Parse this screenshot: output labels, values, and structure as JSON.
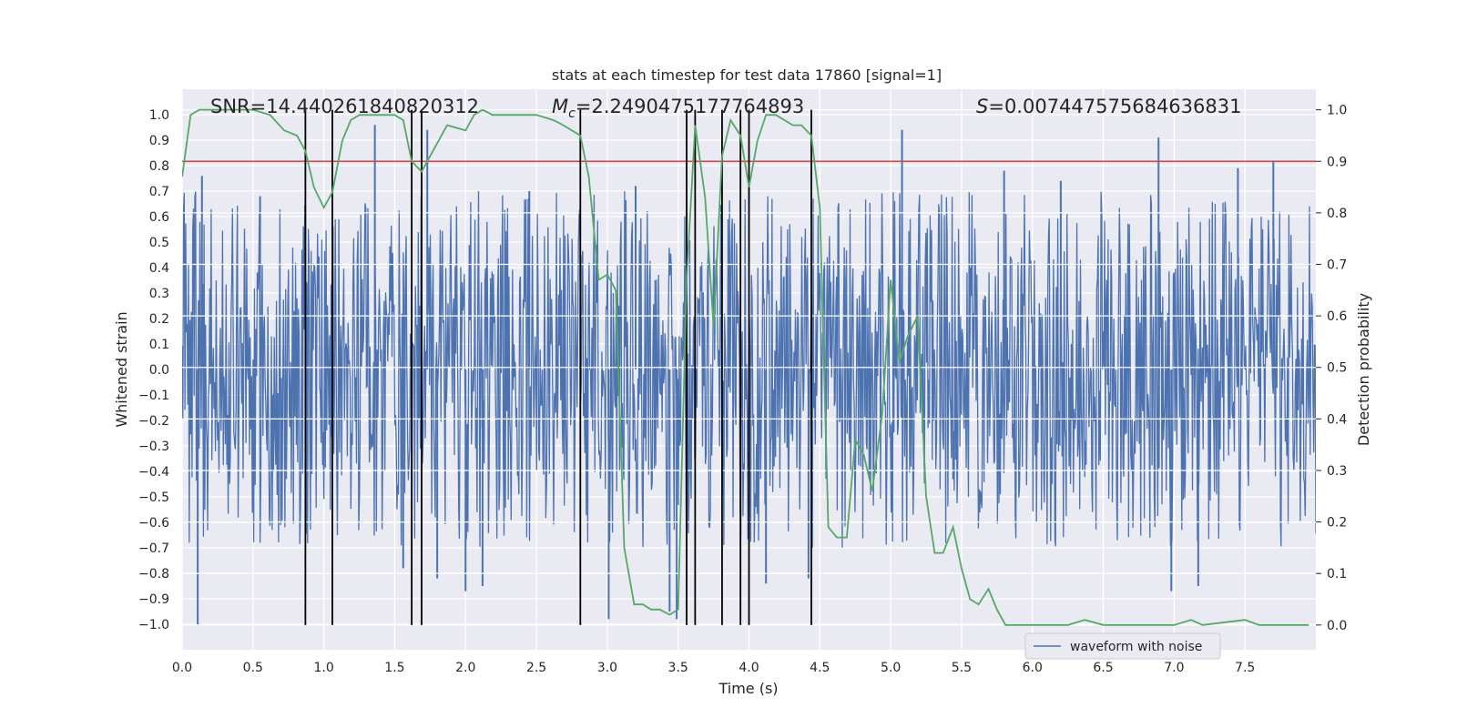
{
  "chart_data": {
    "type": "line",
    "title": "stats at each timestep for test data 17860 [signal=1]",
    "xlabel": "Time (s)",
    "ylabel": "Whitened strain",
    "ylabel_right": "Detection probability",
    "xlim": [
      0.0,
      8.0
    ],
    "ylim": [
      -1.1,
      1.1
    ],
    "ylim_right": [
      -0.048,
      1.04
    ],
    "x_ticks": [
      0.0,
      0.5,
      1.0,
      1.5,
      2.0,
      2.5,
      3.0,
      3.5,
      4.0,
      4.5,
      5.0,
      5.5,
      6.0,
      6.5,
      7.0,
      7.5
    ],
    "x_tick_labels": [
      "0.0",
      "0.5",
      "1.0",
      "1.5",
      "2.0",
      "2.5",
      "3.0",
      "3.5",
      "4.0",
      "4.5",
      "5.0",
      "5.5",
      "6.0",
      "6.5",
      "7.0",
      "7.5"
    ],
    "y_ticks": [
      1.0,
      0.9,
      0.8,
      0.7,
      0.6,
      0.5,
      0.4,
      0.3,
      0.2,
      0.1,
      0.0,
      -0.1,
      -0.2,
      -0.3,
      -0.4,
      -0.5,
      -0.6,
      -0.7,
      -0.8,
      -0.9,
      -1.0
    ],
    "y_tick_labels": [
      "1.0",
      "0.9",
      "0.8",
      "0.7",
      "0.6",
      "0.5",
      "0.4",
      "0.3",
      "0.2",
      "0.1",
      "0.0",
      "−0.1",
      "−0.2",
      "−0.3",
      "−0.4",
      "−0.5",
      "−0.6",
      "−0.7",
      "−0.8",
      "−0.9",
      "−1.0"
    ],
    "y_right_ticks": [
      1.0,
      0.9,
      0.8,
      0.7,
      0.6,
      0.5,
      0.4,
      0.3,
      0.2,
      0.1,
      0.0
    ],
    "y_right_tick_labels": [
      "1.0",
      "0.9",
      "0.8",
      "0.7",
      "0.6",
      "0.5",
      "0.4",
      "0.3",
      "0.2",
      "0.1",
      "0.0"
    ],
    "annotations": {
      "snr": "SNR=14.440261840820312",
      "mc_symbol": "M",
      "mc_subscript": "c",
      "mc_value": "=2.2490475177764893",
      "s_symbol": "S",
      "s_value": "=0.007447575684636831"
    },
    "legend": {
      "label": "waveform with noise",
      "location": "lower-center"
    },
    "threshold": {
      "value": 0.9,
      "axis": "right",
      "color": "#c44e52"
    },
    "vertical_lines_x": [
      0.87,
      1.06,
      1.62,
      1.69,
      2.81,
      3.56,
      3.62,
      3.81,
      3.94,
      4.0,
      4.44
    ],
    "waveform": {
      "name": "waveform with noise",
      "color": "#4c72b0",
      "n_samples": 1600,
      "envelope": 0.4,
      "spikes": [
        {
          "x": 0.11,
          "y": -1.0
        },
        {
          "x": 0.14,
          "y": 0.76
        },
        {
          "x": 1.36,
          "y": 0.96
        },
        {
          "x": 1.56,
          "y": -0.78
        },
        {
          "x": 1.73,
          "y": 0.94
        },
        {
          "x": 1.8,
          "y": -0.82
        },
        {
          "x": 2.0,
          "y": -0.87
        },
        {
          "x": 2.12,
          "y": -0.85
        },
        {
          "x": 3.01,
          "y": -0.98
        },
        {
          "x": 3.44,
          "y": -0.95
        },
        {
          "x": 3.49,
          "y": -0.98
        },
        {
          "x": 4.12,
          "y": -0.84
        },
        {
          "x": 4.42,
          "y": -0.82
        },
        {
          "x": 5.08,
          "y": 0.94
        },
        {
          "x": 6.89,
          "y": 0.91
        },
        {
          "x": 6.98,
          "y": -0.87
        },
        {
          "x": 7.17,
          "y": -0.85
        },
        {
          "x": 7.7,
          "y": 0.82
        },
        {
          "x": 0.55,
          "y": 0.68
        },
        {
          "x": 2.45,
          "y": 0.7
        },
        {
          "x": 3.2,
          "y": 0.72
        },
        {
          "x": 5.8,
          "y": 0.78
        },
        {
          "x": 6.2,
          "y": 0.74
        },
        {
          "x": 7.45,
          "y": 0.79
        }
      ]
    },
    "series": [
      {
        "name": "Detection probability",
        "color": "#55a868",
        "axis": "right",
        "x": [
          0.0,
          0.06,
          0.12,
          0.25,
          0.5,
          0.62,
          0.72,
          0.81,
          0.87,
          0.93,
          1.0,
          1.06,
          1.13,
          1.19,
          1.25,
          1.5,
          1.56,
          1.62,
          1.69,
          1.75,
          1.81,
          1.87,
          2.0,
          2.06,
          2.12,
          2.19,
          2.31,
          2.5,
          2.62,
          2.69,
          2.81,
          2.87,
          2.94,
          3.0,
          3.06,
          3.12,
          3.19,
          3.25,
          3.31,
          3.37,
          3.44,
          3.5,
          3.56,
          3.62,
          3.69,
          3.75,
          3.81,
          3.87,
          3.94,
          4.0,
          4.06,
          4.12,
          4.19,
          4.31,
          4.37,
          4.44,
          4.5,
          4.56,
          4.62,
          4.69,
          4.75,
          4.81,
          4.87,
          4.94,
          5.0,
          5.06,
          5.12,
          5.19,
          5.25,
          5.31,
          5.37,
          5.44,
          5.5,
          5.56,
          5.62,
          5.69,
          5.75,
          5.81,
          5.94,
          6.0,
          6.25,
          6.37,
          6.5,
          6.75,
          7.0,
          7.12,
          7.2,
          7.5,
          7.6,
          7.95
        ],
        "values": [
          0.87,
          0.99,
          1.0,
          1.0,
          1.0,
          0.99,
          0.96,
          0.95,
          0.92,
          0.85,
          0.81,
          0.84,
          0.94,
          0.98,
          0.99,
          0.99,
          0.98,
          0.9,
          0.88,
          0.91,
          0.94,
          0.97,
          0.96,
          0.99,
          1.0,
          0.99,
          0.99,
          0.99,
          0.98,
          0.97,
          0.95,
          0.87,
          0.67,
          0.68,
          0.65,
          0.15,
          0.04,
          0.04,
          0.03,
          0.03,
          0.02,
          0.03,
          0.67,
          0.97,
          0.83,
          0.58,
          0.91,
          0.98,
          0.95,
          0.85,
          0.94,
          0.99,
          0.99,
          0.97,
          0.97,
          0.95,
          0.81,
          0.19,
          0.17,
          0.17,
          0.36,
          0.33,
          0.26,
          0.41,
          0.67,
          0.51,
          0.56,
          0.6,
          0.25,
          0.14,
          0.14,
          0.19,
          0.11,
          0.05,
          0.04,
          0.07,
          0.03,
          0.0,
          0.0,
          0.0,
          0.0,
          0.01,
          0.0,
          0.0,
          0.0,
          0.01,
          0.0,
          0.01,
          0.0,
          0.0
        ]
      }
    ]
  }
}
